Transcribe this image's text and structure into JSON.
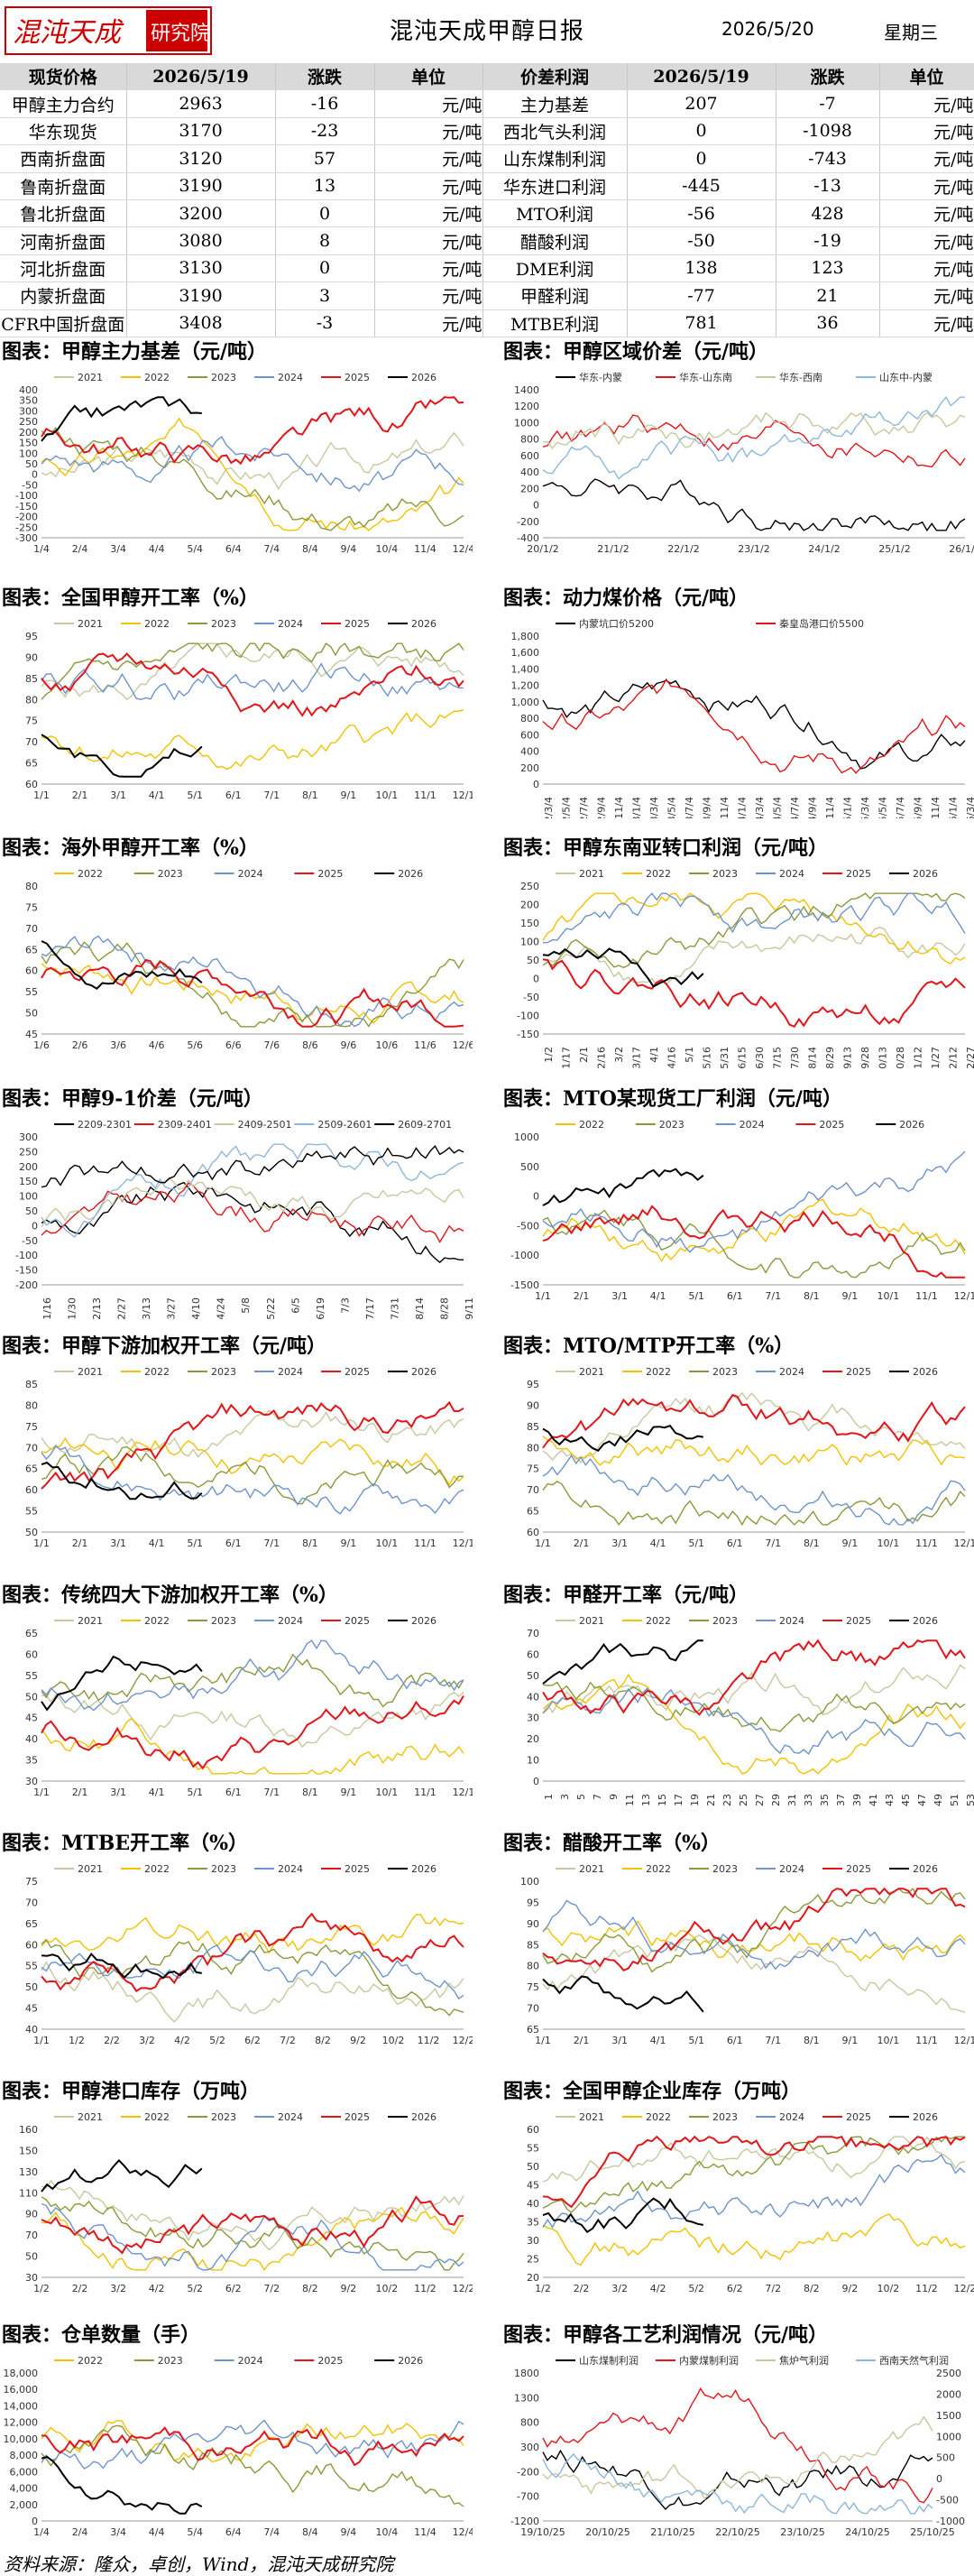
{
  "header": {
    "logo_text": "混沌天成研究院",
    "title": "混沌天成甲醇日报",
    "date": "2026/5/20",
    "weekday": "星期三"
  },
  "table": {
    "headers": [
      "现货价格",
      "2026/5/19",
      "涨跌",
      "单位",
      "价差利润",
      "2026/5/19",
      "涨跌",
      "单位"
    ],
    "rows": [
      [
        "甲醇主力合约",
        "2963",
        "-16",
        "元/吨",
        "主力基差",
        "207",
        "-7",
        "元/吨"
      ],
      [
        "华东现货",
        "3170",
        "-23",
        "元/吨",
        "西北气头利润",
        "0",
        "-1098",
        "元/吨"
      ],
      [
        "西南折盘面",
        "3120",
        "57",
        "元/吨",
        "山东煤制利润",
        "0",
        "-743",
        "元/吨"
      ],
      [
        "鲁南折盘面",
        "3190",
        "13",
        "元/吨",
        "华东进口利润",
        "-445",
        "-13",
        "元/吨"
      ],
      [
        "鲁北折盘面",
        "3200",
        "0",
        "元/吨",
        "MTO利润",
        "-56",
        "428",
        "元/吨"
      ],
      [
        "河南折盘面",
        "3080",
        "8",
        "元/吨",
        "醋酸利润",
        "-50",
        "-19",
        "元/吨"
      ],
      [
        "河北折盘面",
        "3130",
        "0",
        "元/吨",
        "DME利润",
        "138",
        "123",
        "元/吨"
      ],
      [
        "内蒙折盘面",
        "3190",
        "3",
        "元/吨",
        "甲醛利润",
        "-77",
        "21",
        "元/吨"
      ],
      [
        "CFR中国折盘面",
        "3408",
        "-3",
        "元/吨",
        "MTBE利润",
        "781",
        "36",
        "元/吨"
      ]
    ]
  },
  "colors": {
    "y2021": "#c8c8a0",
    "y2022": "#f2c200",
    "y2023": "#8a9a3b",
    "y2024": "#6f94c9",
    "y2025": "#e0161b",
    "y2026": "#000000"
  },
  "chart_data": [
    {
      "id": "c1",
      "type": "line",
      "title": "图表：甲醇主力基差（元/吨）",
      "legend": [
        "2021",
        "2022",
        "2023",
        "2024",
        "2025",
        "2026"
      ],
      "yticks": [
        "400",
        "350",
        "300",
        "250",
        "200",
        "150",
        "100",
        "50",
        "0",
        "-50",
        "-100",
        "-150",
        "-200",
        "-250",
        "-300"
      ],
      "xticks": [
        "1/4",
        "2/4",
        "3/4",
        "4/4",
        "5/4",
        "6/4",
        "7/4",
        "8/4",
        "9/4",
        "10/4",
        "11/4",
        "12/4"
      ],
      "ylim": [
        -300,
        400
      ]
    },
    {
      "id": "c2",
      "type": "line",
      "title": "图表：甲醇区域价差（元/吨）",
      "legend": [
        "华东-内蒙",
        "华东-山东南",
        "华东-西南",
        "山东中-内蒙"
      ],
      "yticks": [
        "1400",
        "1200",
        "1000",
        "800",
        "600",
        "400",
        "200",
        "0",
        "-200",
        "-400"
      ],
      "xticks": [
        "20/1/2",
        "21/1/2",
        "22/1/2",
        "23/1/2",
        "24/1/2",
        "25/1/2",
        "26/1/2"
      ],
      "ylim": [
        -400,
        1400
      ]
    },
    {
      "id": "c3",
      "type": "line",
      "title": "图表：全国甲醇开工率（%）",
      "legend": [
        "2021",
        "2022",
        "2023",
        "2024",
        "2025",
        "2026"
      ],
      "yticks": [
        "95",
        "90",
        "85",
        "80",
        "75",
        "70",
        "65",
        "60"
      ],
      "xticks": [
        "1/1",
        "2/1",
        "3/1",
        "4/1",
        "5/1",
        "6/1",
        "7/1",
        "8/1",
        "9/1",
        "10/1",
        "11/1",
        "12/1"
      ],
      "ylim": [
        60,
        95
      ]
    },
    {
      "id": "c4",
      "type": "line",
      "title": "图表：动力煤价格（元/吨）",
      "legend": [
        "内蒙坑口价5200",
        "秦皇岛港口价5500"
      ],
      "yticks": [
        "1,800",
        "1,600",
        "1,400",
        "1,200",
        "1,000",
        "800",
        "600",
        "400",
        "200",
        "0"
      ],
      "xticks": [
        "22/3/4",
        "22/5/4",
        "22/7/4",
        "22/9/4",
        "22/11/4",
        "23/1/4",
        "23/3/4",
        "23/5/4",
        "23/7/4",
        "23/9/4",
        "23/11/4",
        "24/1/4",
        "24/3/4",
        "24/5/4",
        "24/7/4",
        "24/9/4",
        "24/11/4",
        "25/1/4",
        "25/3/4",
        "25/5/4",
        "25/7/4",
        "25/9/4",
        "25/11/4",
        "26/1/4",
        "26/3/4"
      ],
      "ylim": [
        0,
        1800
      ]
    },
    {
      "id": "c5",
      "type": "line",
      "title": "图表：海外甲醇开工率（%）",
      "legend": [
        "2022",
        "2023",
        "2024",
        "2025",
        "2026"
      ],
      "yticks": [
        "80",
        "75",
        "70",
        "65",
        "60",
        "55",
        "50",
        "45"
      ],
      "xticks": [
        "1/6",
        "2/6",
        "3/6",
        "4/6",
        "5/6",
        "6/6",
        "7/6",
        "8/6",
        "9/6",
        "10/6",
        "11/6",
        "12/6"
      ],
      "ylim": [
        45,
        80
      ]
    },
    {
      "id": "c6",
      "type": "line",
      "title": "图表：甲醇东南亚转口利润（元/吨）",
      "legend": [
        "2021",
        "2022",
        "2023",
        "2024",
        "2025",
        "2026"
      ],
      "yticks": [
        "250",
        "200",
        "150",
        "100",
        "50",
        "0",
        "-50",
        "-100",
        "-150"
      ],
      "xticks": [
        "1/2",
        "1/17",
        "2/1",
        "2/16",
        "3/2",
        "3/17",
        "4/1",
        "4/16",
        "5/1",
        "5/16",
        "5/31",
        "6/15",
        "6/30",
        "7/15",
        "7/30",
        "8/14",
        "8/29",
        "9/13",
        "9/28",
        "10/13",
        "10/28",
        "11/12",
        "11/27",
        "12/12",
        "12/27"
      ],
      "ylim": [
        -150,
        250
      ]
    },
    {
      "id": "c7",
      "type": "line",
      "title": "图表：甲醇9-1价差（元/吨）",
      "legend": [
        "2209-2301",
        "2309-2401",
        "2409-2501",
        "2509-2601",
        "2609-2701"
      ],
      "yticks": [
        "300",
        "250",
        "200",
        "150",
        "100",
        "50",
        "0",
        "-50",
        "-100",
        "-150",
        "-200"
      ],
      "xticks": [
        "1/16",
        "1/30",
        "2/13",
        "2/27",
        "3/13",
        "3/27",
        "4/10",
        "4/24",
        "5/8",
        "5/22",
        "6/5",
        "6/19",
        "7/3",
        "7/17",
        "7/31",
        "8/14",
        "8/28",
        "9/11"
      ],
      "ylim": [
        -200,
        300
      ]
    },
    {
      "id": "c8",
      "type": "line",
      "title": "图表：MTO某现货工厂利润（元/吨）",
      "legend": [
        "2022",
        "2023",
        "2024",
        "2025",
        "2026"
      ],
      "yticks": [
        "1000",
        "500",
        "0",
        "-500",
        "-1000",
        "-1500"
      ],
      "xticks": [
        "1/1",
        "2/1",
        "3/1",
        "4/1",
        "5/1",
        "6/1",
        "7/1",
        "8/1",
        "9/1",
        "10/1",
        "11/1",
        "12/1"
      ],
      "ylim": [
        -1500,
        1000
      ]
    },
    {
      "id": "c9",
      "type": "line",
      "title": "图表：甲醇下游加权开工率（元/吨）",
      "legend": [
        "2021",
        "2022",
        "2023",
        "2024",
        "2025",
        "2026"
      ],
      "yticks": [
        "85",
        "80",
        "75",
        "70",
        "65",
        "60",
        "55",
        "50"
      ],
      "xticks": [
        "1/1",
        "2/1",
        "3/1",
        "4/1",
        "5/1",
        "6/1",
        "7/1",
        "8/1",
        "9/1",
        "10/1",
        "11/1",
        "12/1"
      ],
      "ylim": [
        50,
        85
      ]
    },
    {
      "id": "c10",
      "type": "line",
      "title": "图表：MTO/MTP开工率（%）",
      "legend": [
        "2021",
        "2022",
        "2023",
        "2024",
        "2025",
        "2026"
      ],
      "yticks": [
        "95",
        "90",
        "85",
        "80",
        "75",
        "70",
        "65",
        "60"
      ],
      "xticks": [
        "1/1",
        "2/1",
        "3/1",
        "4/1",
        "5/1",
        "6/1",
        "7/1",
        "8/1",
        "9/1",
        "10/1",
        "11/1",
        "12/1"
      ],
      "ylim": [
        60,
        95
      ]
    },
    {
      "id": "c11",
      "type": "line",
      "title": "图表：传统四大下游加权开工率（%）",
      "legend": [
        "2021",
        "2022",
        "2023",
        "2024",
        "2025",
        "2026"
      ],
      "yticks": [
        "65",
        "60",
        "55",
        "50",
        "45",
        "40",
        "35",
        "30"
      ],
      "xticks": [
        "1/1",
        "2/1",
        "3/1",
        "4/1",
        "5/1",
        "6/1",
        "7/1",
        "8/1",
        "9/1",
        "10/1",
        "11/1",
        "12/1"
      ],
      "ylim": [
        30,
        65
      ]
    },
    {
      "id": "c12",
      "type": "line",
      "title": "图表：甲醛开工率（元/吨）",
      "legend": [
        "2021",
        "2022",
        "2023",
        "2024",
        "2025",
        "2026"
      ],
      "yticks": [
        "70",
        "60",
        "50",
        "40",
        "30",
        "20",
        "10",
        "0"
      ],
      "xticks": [
        "1",
        "3",
        "5",
        "7",
        "9",
        "11",
        "13",
        "15",
        "17",
        "19",
        "21",
        "23",
        "25",
        "27",
        "29",
        "31",
        "33",
        "35",
        "37",
        "39",
        "41",
        "43",
        "45",
        "47",
        "49",
        "51",
        "53"
      ],
      "ylim": [
        0,
        70
      ]
    },
    {
      "id": "c13",
      "type": "line",
      "title": "图表：MTBE开工率（%）",
      "legend": [
        "2021",
        "2022",
        "2023",
        "2024",
        "2025",
        "2026"
      ],
      "yticks": [
        "75",
        "70",
        "65",
        "60",
        "55",
        "50",
        "45",
        "40"
      ],
      "xticks": [
        "1/1",
        "1/2",
        "2/2",
        "3/2",
        "4/2",
        "5/2",
        "6/2",
        "7/2",
        "8/2",
        "9/2",
        "10/2",
        "11/2",
        "12/2"
      ],
      "ylim": [
        40,
        75
      ]
    },
    {
      "id": "c14",
      "type": "line",
      "title": "图表：醋酸开工率（%）",
      "legend": [
        "2021",
        "2022",
        "2023",
        "2024",
        "2025",
        "2026"
      ],
      "yticks": [
        "100",
        "95",
        "90",
        "85",
        "80",
        "75",
        "70",
        "65"
      ],
      "xticks": [
        "1/1",
        "2/1",
        "3/1",
        "4/1",
        "5/1",
        "6/1",
        "7/1",
        "8/1",
        "9/1",
        "10/1",
        "11/1",
        "12/1"
      ],
      "ylim": [
        65,
        100
      ]
    },
    {
      "id": "c15",
      "type": "line",
      "title": "图表：甲醇港口库存（万吨）",
      "legend": [
        "2021",
        "2022",
        "2023",
        "2024",
        "2025",
        "2026"
      ],
      "yticks": [
        "160",
        "150",
        "130",
        "110",
        "90",
        "70",
        "50",
        "30"
      ],
      "xticks": [
        "1/2",
        "2/2",
        "3/2",
        "4/2",
        "5/2",
        "6/2",
        "7/2",
        "8/2",
        "9/2",
        "10/2",
        "11/2",
        "12/2"
      ],
      "ylim": [
        30,
        160
      ]
    },
    {
      "id": "c16",
      "type": "line",
      "title": "图表：全国甲醇企业库存（万吨）",
      "legend": [
        "2021",
        "2022",
        "2023",
        "2024",
        "2025",
        "2026"
      ],
      "yticks": [
        "60",
        "55",
        "50",
        "45",
        "40",
        "35",
        "30",
        "25",
        "20"
      ],
      "xticks": [
        "1/2",
        "2/2",
        "3/2",
        "4/2",
        "5/2",
        "6/2",
        "7/2",
        "8/2",
        "9/2",
        "10/2",
        "11/2",
        "12/2"
      ],
      "ylim": [
        20,
        60
      ]
    },
    {
      "id": "c17",
      "type": "line",
      "title": "图表：仓单数量（手）",
      "legend": [
        "2022",
        "2023",
        "2024",
        "2025",
        "2026"
      ],
      "yticks": [
        "18,000",
        "16,000",
        "14,000",
        "12,000",
        "10,000",
        "8,000",
        "6,000",
        "4,000",
        "2,000",
        "0"
      ],
      "xticks": [
        "1/4",
        "2/4",
        "3/4",
        "4/4",
        "5/4",
        "6/4",
        "7/4",
        "8/4",
        "9/4",
        "10/4",
        "11/4",
        "12/4"
      ],
      "ylim": [
        0,
        18000
      ]
    },
    {
      "id": "c18",
      "type": "line",
      "title": "图表：甲醇各工艺利润情况（元/吨）",
      "legend": [
        "山东煤制利润",
        "内蒙煤制利润",
        "焦炉气利润",
        "西南天然气利润"
      ],
      "yticks": [
        "1800",
        "1300",
        "800",
        "300",
        "-200",
        "-700",
        "-1200"
      ],
      "yticks_right": [
        "2500",
        "2000",
        "1500",
        "1000",
        "500",
        "0",
        "-500",
        "-1000"
      ],
      "xticks": [
        "19/10/25",
        "20/10/25",
        "21/10/25",
        "22/10/25",
        "23/10/25",
        "24/10/25",
        "25/10/25"
      ],
      "ylim": [
        -1200,
        1800
      ]
    }
  ],
  "footer": {
    "source": "资料来源：隆众，卓创，Wind，混沌天成研究院"
  }
}
